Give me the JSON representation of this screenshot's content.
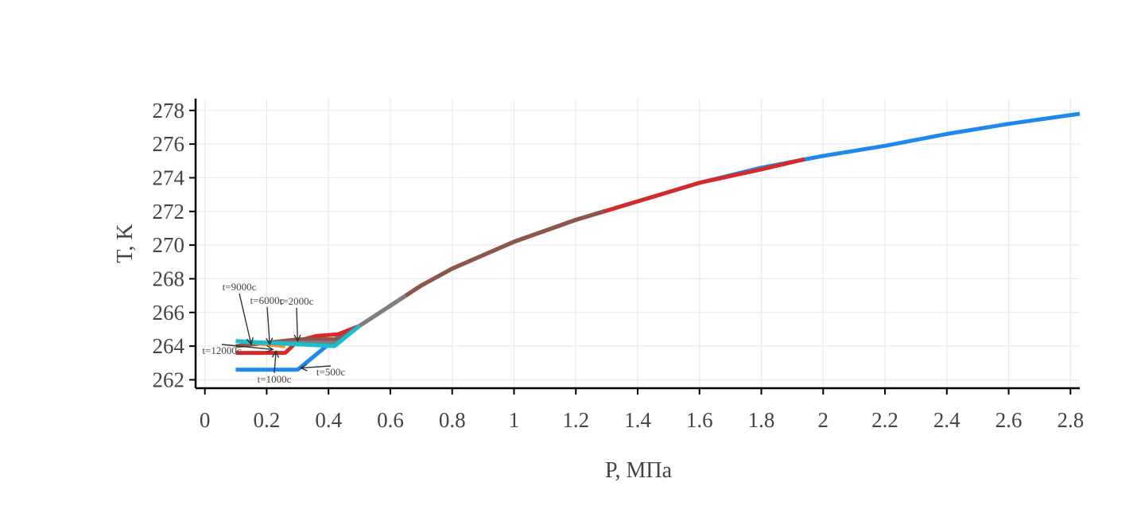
{
  "chart_data": {
    "type": "line",
    "title": "",
    "xlabel": "P, МПа",
    "ylabel": "T, K",
    "xlim": [
      -0.03,
      2.83
    ],
    "ylim": [
      261.5,
      278.7
    ],
    "x_ticks": [
      0,
      0.2,
      0.4,
      0.6,
      0.8,
      1,
      1.2,
      1.4,
      1.6,
      1.8,
      2,
      2.2,
      2.4,
      2.6,
      2.8
    ],
    "x_tick_labels": [
      "0",
      "0.2",
      "0.4",
      "0.6",
      "0.8",
      "1",
      "1.2",
      "1.4",
      "1.6",
      "1.8",
      "2",
      "2.2",
      "2.4",
      "2.6",
      "2.8"
    ],
    "y_ticks": [
      262,
      264,
      266,
      268,
      270,
      272,
      274,
      276,
      278
    ],
    "y_tick_labels": [
      "262",
      "264",
      "266",
      "268",
      "270",
      "272",
      "274",
      "276",
      "278"
    ],
    "grid": true,
    "legend": "none",
    "series": [
      {
        "color": "#1f87f0",
        "points": [
          [
            0.1,
            262.6
          ],
          [
            0.3,
            262.6
          ],
          [
            0.42,
            264.4
          ],
          [
            0.5,
            265.2
          ],
          [
            0.6,
            266.4
          ],
          [
            0.7,
            267.6
          ],
          [
            0.8,
            268.6
          ],
          [
            1.0,
            270.2
          ],
          [
            1.2,
            271.5
          ],
          [
            1.4,
            272.6
          ],
          [
            1.6,
            273.7
          ],
          [
            1.8,
            274.6
          ],
          [
            2.0,
            275.3
          ],
          [
            2.2,
            275.9
          ],
          [
            2.4,
            276.6
          ],
          [
            2.6,
            277.2
          ],
          [
            2.83,
            277.8
          ]
        ]
      },
      {
        "color": "#d62a2a",
        "points": [
          [
            0.1,
            263.6
          ],
          [
            0.26,
            263.6
          ],
          [
            0.3,
            264.3
          ],
          [
            0.36,
            264.6
          ],
          [
            0.43,
            264.7
          ],
          [
            0.5,
            265.2
          ],
          [
            0.6,
            266.4
          ],
          [
            0.7,
            267.6
          ],
          [
            0.8,
            268.6
          ],
          [
            1.0,
            270.2
          ],
          [
            1.2,
            271.5
          ],
          [
            1.4,
            272.6
          ],
          [
            1.6,
            273.7
          ],
          [
            1.8,
            274.5
          ],
          [
            1.94,
            275.1
          ]
        ]
      },
      {
        "color": "#8c564b",
        "points": [
          [
            0.1,
            264.0
          ],
          [
            0.3,
            264.4
          ],
          [
            0.43,
            264.4
          ],
          [
            0.5,
            265.2
          ],
          [
            0.6,
            266.4
          ],
          [
            0.7,
            267.6
          ],
          [
            0.8,
            268.6
          ],
          [
            1.0,
            270.2
          ],
          [
            1.2,
            271.5
          ],
          [
            1.29,
            272.0
          ]
        ]
      },
      {
        "color": "#f0901e",
        "points": [
          [
            0.1,
            264.3
          ],
          [
            0.26,
            264.0
          ]
        ]
      },
      {
        "color": "#7f7f7f",
        "points": [
          [
            0.14,
            264.2
          ],
          [
            0.3,
            264.2
          ],
          [
            0.43,
            264.2
          ],
          [
            0.5,
            265.2
          ],
          [
            0.6,
            266.4
          ],
          [
            0.65,
            267.0
          ]
        ]
      },
      {
        "color": "#17becf",
        "points": [
          [
            0.1,
            264.3
          ],
          [
            0.2,
            264.2
          ],
          [
            0.42,
            264.0
          ],
          [
            0.5,
            265.2
          ]
        ]
      }
    ],
    "annotations": [
      {
        "text": "t=9000с",
        "x": 0.15,
        "y": 264.1
      },
      {
        "text": "t=6000с",
        "x": 0.21,
        "y": 264.1
      },
      {
        "text": "t=2000с",
        "x": 0.3,
        "y": 264.3
      },
      {
        "text": "t=12000с",
        "x": 0.22,
        "y": 263.8
      },
      {
        "text": "t=1000с",
        "x": 0.23,
        "y": 263.7
      },
      {
        "text": "t=500с",
        "x": 0.31,
        "y": 262.7
      }
    ]
  }
}
